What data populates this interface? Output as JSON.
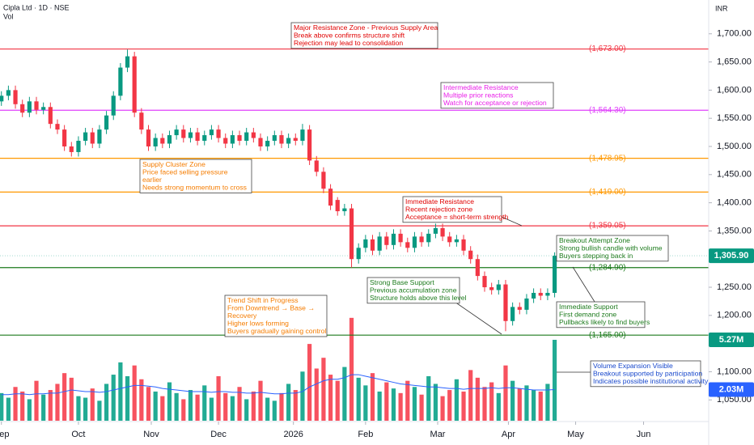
{
  "chart_data": {
    "type": "candlestick",
    "title": "Cipla Ltd · 1D · NSE",
    "volume_label": "Vol",
    "currency": "INR",
    "xlim": [
      -0.2,
      101
    ],
    "xticks": [
      {
        "value": 0,
        "label": "Sep"
      },
      {
        "value": 11,
        "label": "Oct"
      },
      {
        "value": 21.4,
        "label": "Nov"
      },
      {
        "value": 31,
        "label": "Dec"
      },
      {
        "value": 41.7,
        "label": "2026"
      },
      {
        "value": 52,
        "label": "Feb"
      },
      {
        "value": 62.3,
        "label": "Mar"
      },
      {
        "value": 72.4,
        "label": "Apr"
      },
      {
        "value": 82,
        "label": "May"
      },
      {
        "value": 91.7,
        "label": "Jun"
      }
    ],
    "ylim": [
      1013,
      1760
    ],
    "yticks": [
      {
        "value": 1700,
        "label": "1,700.00"
      },
      {
        "value": 1650,
        "label": "1,650.00"
      },
      {
        "value": 1600,
        "label": "1,600.00"
      },
      {
        "value": 1550,
        "label": "1,550.00"
      },
      {
        "value": 1500,
        "label": "1,500.00"
      },
      {
        "value": 1450,
        "label": "1,450.00"
      },
      {
        "value": 1400,
        "label": "1,400.00"
      },
      {
        "value": 1350,
        "label": "1,350.00"
      },
      {
        "value": 1300,
        "label": "1,300.00"
      },
      {
        "value": 1250,
        "label": "1,250.00"
      },
      {
        "value": 1200,
        "label": "1,200.00"
      },
      {
        "value": 1150,
        "label": "1,150.00"
      },
      {
        "value": 1100,
        "label": "1,100.00"
      },
      {
        "value": 1050,
        "label": "1,050.00"
      }
    ],
    "open": [
      1580,
      1590,
      1600,
      1575,
      1560,
      1580,
      1565,
      1570,
      1540,
      1530,
      1500,
      1490,
      1510,
      1525,
      1505,
      1530,
      1555,
      1590,
      1640,
      1660,
      1560,
      1530,
      1500,
      1515,
      1505,
      1520,
      1530,
      1515,
      1525,
      1510,
      1520,
      1530,
      1515,
      1505,
      1520,
      1510,
      1525,
      1515,
      1500,
      1510,
      1520,
      1505,
      1515,
      1510,
      1530,
      1475,
      1455,
      1425,
      1405,
      1385,
      1390,
      1300,
      1320,
      1335,
      1315,
      1340,
      1325,
      1345,
      1330,
      1320,
      1340,
      1330,
      1345,
      1355,
      1340,
      1330,
      1335,
      1315,
      1300,
      1270,
      1250,
      1245,
      1255,
      1190,
      1215,
      1210,
      1230,
      1240,
      1235,
      1240
    ],
    "high": [
      1598,
      1608,
      1608,
      1583,
      1588,
      1588,
      1578,
      1578,
      1548,
      1538,
      1508,
      1518,
      1533,
      1533,
      1538,
      1563,
      1598,
      1648,
      1672,
      1668,
      1568,
      1538,
      1523,
      1523,
      1528,
      1538,
      1538,
      1533,
      1533,
      1528,
      1538,
      1538,
      1523,
      1528,
      1528,
      1533,
      1533,
      1523,
      1518,
      1528,
      1528,
      1523,
      1523,
      1540,
      1538,
      1483,
      1463,
      1433,
      1410,
      1398,
      1398,
      1328,
      1343,
      1343,
      1348,
      1348,
      1353,
      1353,
      1338,
      1348,
      1348,
      1353,
      1363,
      1363,
      1348,
      1343,
      1343,
      1323,
      1308,
      1278,
      1258,
      1263,
      1263,
      1223,
      1223,
      1238,
      1248,
      1248,
      1248,
      1312
    ],
    "low": [
      1572,
      1582,
      1567,
      1552,
      1552,
      1557,
      1557,
      1532,
      1522,
      1492,
      1482,
      1482,
      1502,
      1497,
      1497,
      1522,
      1547,
      1582,
      1632,
      1552,
      1522,
      1492,
      1492,
      1497,
      1497,
      1512,
      1507,
      1507,
      1502,
      1502,
      1512,
      1507,
      1497,
      1497,
      1502,
      1502,
      1507,
      1492,
      1492,
      1502,
      1497,
      1497,
      1502,
      1502,
      1467,
      1447,
      1417,
      1387,
      1377,
      1377,
      1285,
      1292,
      1312,
      1307,
      1307,
      1317,
      1317,
      1322,
      1312,
      1312,
      1322,
      1322,
      1337,
      1332,
      1322,
      1322,
      1307,
      1292,
      1262,
      1242,
      1237,
      1237,
      1172,
      1182,
      1202,
      1202,
      1222,
      1227,
      1227,
      1232
    ],
    "close": [
      1590,
      1600,
      1575,
      1560,
      1580,
      1565,
      1570,
      1540,
      1530,
      1500,
      1490,
      1510,
      1525,
      1505,
      1530,
      1555,
      1590,
      1640,
      1660,
      1560,
      1530,
      1500,
      1515,
      1505,
      1520,
      1530,
      1515,
      1525,
      1510,
      1520,
      1530,
      1515,
      1505,
      1520,
      1510,
      1525,
      1515,
      1500,
      1510,
      1520,
      1505,
      1515,
      1510,
      1530,
      1475,
      1455,
      1425,
      1395,
      1385,
      1390,
      1300,
      1320,
      1335,
      1315,
      1340,
      1325,
      1345,
      1330,
      1320,
      1340,
      1330,
      1345,
      1355,
      1340,
      1330,
      1335,
      1315,
      1300,
      1270,
      1250,
      1245,
      1255,
      1190,
      1215,
      1210,
      1230,
      1240,
      1235,
      1240,
      1305.9
    ],
    "volume": [
      1.8,
      1.5,
      2.2,
      1.9,
      1.4,
      2.6,
      1.7,
      2.0,
      2.4,
      3.1,
      2.8,
      1.6,
      1.5,
      2.1,
      1.3,
      2.4,
      3.0,
      3.8,
      2.9,
      3.6,
      2.7,
      2.2,
      1.9,
      1.6,
      2.5,
      1.8,
      1.4,
      2.0,
      1.7,
      2.3,
      1.5,
      2.9,
      1.8,
      1.6,
      2.2,
      1.4,
      1.9,
      2.6,
      1.5,
      1.3,
      1.8,
      2.4,
      2.0,
      3.2,
      5.0,
      3.4,
      4.1,
      3.0,
      2.6,
      3.5,
      6.7,
      2.8,
      2.3,
      3.1,
      1.9,
      2.5,
      2.1,
      1.8,
      2.6,
      2.2,
      1.7,
      2.9,
      2.4,
      1.6,
      2.0,
      2.7,
      1.9,
      3.3,
      2.8,
      2.2,
      2.5,
      1.8,
      3.6,
      2.6,
      2.1,
      2.3,
      2.0,
      1.9,
      2.4,
      5.27
    ],
    "volume_ma": [
      1.7,
      1.7,
      1.75,
      1.75,
      1.7,
      1.75,
      1.75,
      1.8,
      1.8,
      1.9,
      2.0,
      1.95,
      1.9,
      1.9,
      1.85,
      1.9,
      2.0,
      2.1,
      2.2,
      2.3,
      2.3,
      2.25,
      2.2,
      2.1,
      2.05,
      2.0,
      1.95,
      1.9,
      1.9,
      1.9,
      1.85,
      1.9,
      1.9,
      1.85,
      1.85,
      1.8,
      1.8,
      1.85,
      1.8,
      1.75,
      1.75,
      1.8,
      1.8,
      1.9,
      2.2,
      2.4,
      2.6,
      2.7,
      2.7,
      2.8,
      3.0,
      3.0,
      2.9,
      2.8,
      2.7,
      2.6,
      2.5,
      2.4,
      2.35,
      2.3,
      2.25,
      2.2,
      2.2,
      2.15,
      2.1,
      2.1,
      2.05,
      2.1,
      2.1,
      2.1,
      2.15,
      2.1,
      2.15,
      2.15,
      2.1,
      2.05,
      2.0,
      2.0,
      2.0,
      2.03
    ],
    "volume_lim": [
      0,
      27.4
    ],
    "up_color": "#089981",
    "down_color": "#f23645",
    "volume_up_color": "#22ab94",
    "volume_down_color": "#f7525f",
    "volume_ma_color": "#2962ff",
    "last_price_label": "1,305.90",
    "volume_last_label": "5.27M",
    "volume_ma_last_label": "2.03M",
    "levels": [
      {
        "value": 1673,
        "label": "(1,673.00)",
        "color": "#f23645"
      },
      {
        "value": 1564.3,
        "label": "(1,564.30)",
        "color": "#e040fb"
      },
      {
        "value": 1478.95,
        "label": "(1,478.95)",
        "color": "#ff9800"
      },
      {
        "value": 1419,
        "label": "(1,419.00)",
        "color": "#ff9800"
      },
      {
        "value": 1359.05,
        "label": "(1,359.05)",
        "color": "#f23645"
      },
      {
        "value": 1284.9,
        "label": "(1,284.90)",
        "color": "#1b7a1b"
      },
      {
        "value": 1165,
        "label": "(1,165.00)",
        "color": "#1b7a1b"
      }
    ],
    "annotations": [
      {
        "color": "#e00000",
        "lines": [
          "Major Resistance Zone - Previous Supply Area",
          "Break above confirms structure shift",
          "Rejection may lead to consolidation"
        ]
      },
      {
        "color": "#e91ee8",
        "lines": [
          "Intermediate Resistance",
          "Multiple prior reactions",
          "Watch for acceptance or rejection"
        ]
      },
      {
        "color": "#f57c00",
        "lines": [
          "Supply Cluster Zone",
          "Price faced selling pressure",
          "earlier",
          "Needs strong momentum to cross"
        ]
      },
      {
        "color": "#e00000",
        "lines": [
          "Immediate Resistance",
          "Recent rejection zone",
          "Acceptance = short-term strength"
        ]
      },
      {
        "color": "#1b7a1b",
        "lines": [
          "Breakout Attempt Zone",
          "Strong bullish candle with volume",
          "Buyers stepping back in"
        ]
      },
      {
        "color": "#1b7a1b",
        "lines": [
          "Strong Base Support",
          "Previous accumulation zone",
          "Structure holds above this level"
        ]
      },
      {
        "color": "#f57c00",
        "lines": [
          "Trend Shift in Progress",
          "From Downtrend → Base →",
          "Recovery",
          "Higher lows forming",
          "Buyers gradually gaining control"
        ]
      },
      {
        "color": "#1b7a1b",
        "lines": [
          "Immediate Support",
          "First demand zone",
          "Pullbacks likely to find buyers"
        ]
      },
      {
        "color": "#1848cc",
        "lines": [
          "Volume Expansion Visible",
          "Breakout supported by participation",
          "Indicates possible institutional activity"
        ]
      }
    ]
  }
}
